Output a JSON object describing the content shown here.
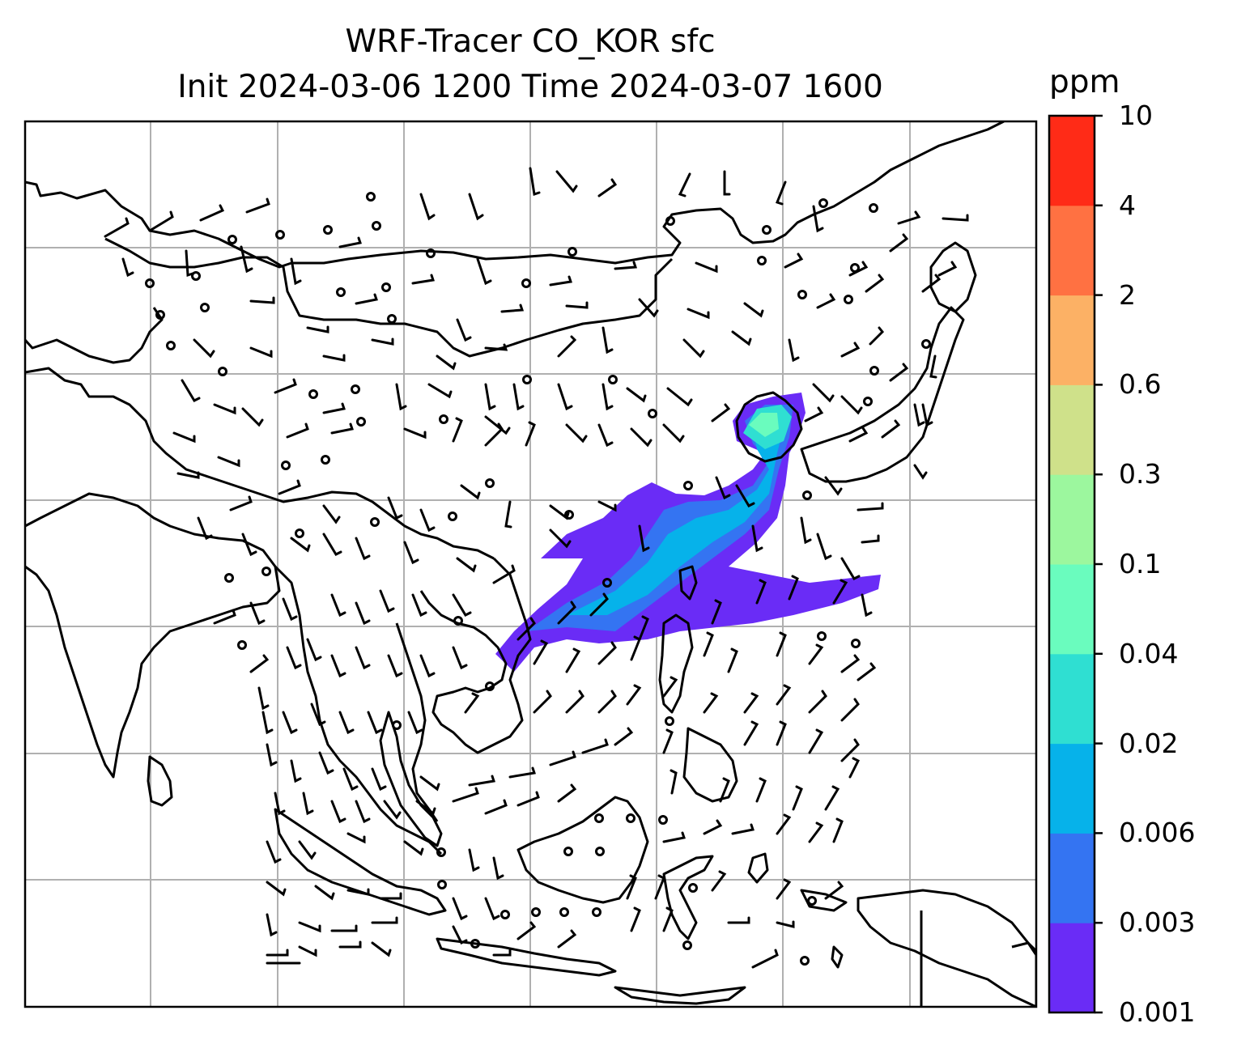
{
  "title": {
    "line1": "WRF-Tracer CO_KOR sfc",
    "line2": "Init 2024-03-06 1200 Time 2024-03-07 1600"
  },
  "colorbar": {
    "unit": "ppm",
    "levels": [
      "0.001",
      "0.003",
      "0.006",
      "0.02",
      "0.04",
      "0.1",
      "0.3",
      "0.6",
      "2",
      "4",
      "10"
    ],
    "colors": [
      "#6a2cf6",
      "#3474f2",
      "#06b2ea",
      "#2fdfd2",
      "#6afcbe",
      "#9cf79e",
      "#cfe18a",
      "#fcb165",
      "#ff7142",
      "#ff2b17"
    ]
  },
  "map": {
    "gridlines": true,
    "coastline_color": "#000000",
    "gridline_color": "#b0b0b0",
    "wind_barbs": true
  }
}
